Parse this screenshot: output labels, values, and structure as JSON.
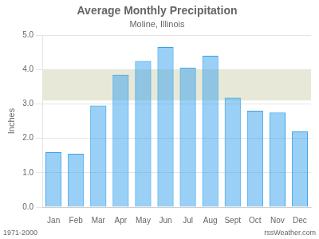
{
  "chart_data": {
    "type": "bar",
    "title": "Average Monthly Precipitation",
    "subtitle": "Moline, Illinois",
    "ylabel": "Inches",
    "categories": [
      "Jan",
      "Feb",
      "Mar",
      "Apr",
      "May",
      "Jun",
      "Jul",
      "Aug",
      "Sept",
      "Oct",
      "Nov",
      "Dec"
    ],
    "values": [
      1.6,
      1.55,
      2.95,
      3.85,
      4.25,
      4.65,
      4.05,
      4.4,
      3.18,
      2.8,
      2.75,
      2.2
    ],
    "ylim": [
      0.0,
      5.0
    ],
    "yticks": [
      {
        "value": 0.0,
        "label": "0.0"
      },
      {
        "value": 1.0,
        "label": "1.0"
      },
      {
        "value": 2.0,
        "label": "2.0"
      },
      {
        "value": 3.0,
        "label": "3.0"
      },
      {
        "value": 4.0,
        "label": "4.0"
      },
      {
        "value": 5.0,
        "label": "5.0"
      }
    ],
    "band": {
      "from": 3.1,
      "to": 4.0,
      "color": "#e8e8d8"
    },
    "footer_left": "1971-2000",
    "footer_right": "rssWeather.com",
    "grid": true
  }
}
